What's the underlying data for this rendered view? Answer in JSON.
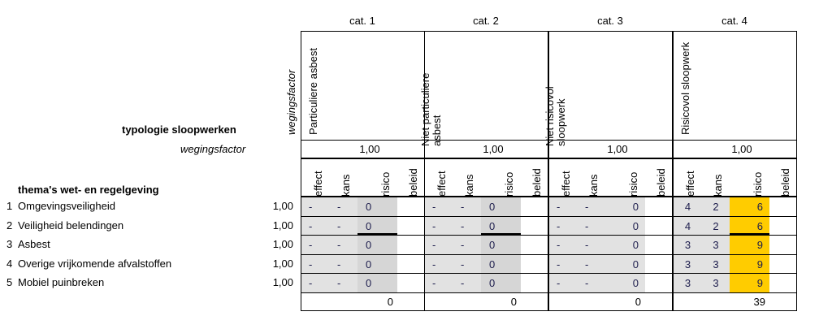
{
  "header": {
    "typology_label": "typologie sloopwerken",
    "weight_label": "wegingsfactor",
    "weight_vertical_label": "wegingsfactor",
    "themes_label": "thema's wet- en regelgeving"
  },
  "categories": [
    {
      "cat": "cat. 1",
      "name": "Particuliere asbest",
      "weight": "1,00",
      "total": "0"
    },
    {
      "cat": "cat. 2",
      "name": "Niet particuliere asbest",
      "weight": "1,00",
      "total": "0"
    },
    {
      "cat": "cat. 3",
      "name": "Niet risicovol sloopwerk",
      "weight": "1,00",
      "total": "0"
    },
    {
      "cat": "cat. 4",
      "name": "Risicovol sloopwerk",
      "weight": "1,00",
      "total": "39"
    }
  ],
  "subcolumns": [
    "effect",
    "kans",
    "risico",
    "beleid"
  ],
  "themes": [
    {
      "num": "1",
      "label": "Omgevingsveiligheid",
      "weight": "1,00",
      "values": [
        [
          "-",
          "-",
          "0",
          ""
        ],
        [
          "-",
          "-",
          "0",
          ""
        ],
        [
          "-",
          "-",
          "0",
          ""
        ],
        [
          "4",
          "2",
          "6",
          ""
        ]
      ]
    },
    {
      "num": "2",
      "label": "Veiligheid belendingen",
      "weight": "1,00",
      "values": [
        [
          "-",
          "-",
          "0",
          ""
        ],
        [
          "-",
          "-",
          "0",
          ""
        ],
        [
          "-",
          "-",
          "0",
          ""
        ],
        [
          "4",
          "2",
          "6",
          ""
        ]
      ]
    },
    {
      "num": "3",
      "label": "Asbest",
      "weight": "1,00",
      "values": [
        [
          "-",
          "-",
          "0",
          ""
        ],
        [
          "-",
          "-",
          "0",
          ""
        ],
        [
          "-",
          "-",
          "0",
          ""
        ],
        [
          "3",
          "3",
          "9",
          ""
        ]
      ]
    },
    {
      "num": "4",
      "label": "Overige vrijkomende afvalstoffen",
      "weight": "1,00",
      "values": [
        [
          "-",
          "-",
          "0",
          ""
        ],
        [
          "-",
          "-",
          "0",
          ""
        ],
        [
          "-",
          "-",
          "0",
          ""
        ],
        [
          "3",
          "3",
          "9",
          ""
        ]
      ]
    },
    {
      "num": "5",
      "label": "Mobiel puinbreken",
      "weight": "1,00",
      "values": [
        [
          "-",
          "-",
          "0",
          ""
        ],
        [
          "-",
          "-",
          "0",
          ""
        ],
        [
          "-",
          "-",
          "0",
          ""
        ],
        [
          "3",
          "3",
          "9",
          ""
        ]
      ]
    }
  ],
  "colors": {
    "grey": "#e2e2e2",
    "grey_dark": "#d6d6d6",
    "highlight": "#ffcc00"
  }
}
